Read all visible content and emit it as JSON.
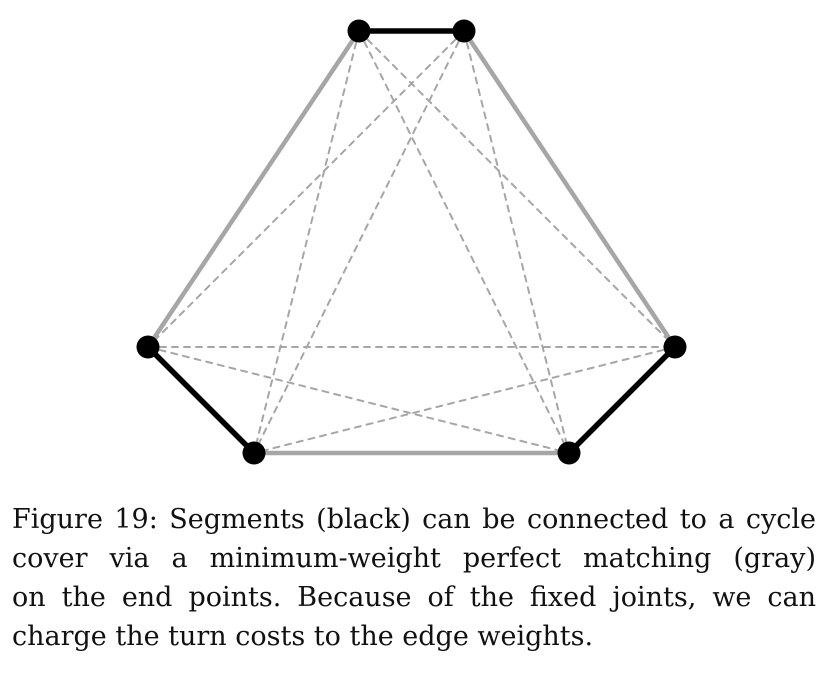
{
  "diagram": {
    "nodes": [
      {
        "id": "top-left"
      },
      {
        "id": "top-right"
      },
      {
        "id": "mid-left"
      },
      {
        "id": "mid-right"
      },
      {
        "id": "bottom-left"
      },
      {
        "id": "bottom-right"
      }
    ],
    "segments": [
      {
        "from": "top-left",
        "to": "top-right"
      },
      {
        "from": "mid-left",
        "to": "bottom-left"
      },
      {
        "from": "mid-right",
        "to": "bottom-right"
      }
    ],
    "matching_edges": [
      {
        "from": "top-left",
        "to": "mid-left"
      },
      {
        "from": "top-right",
        "to": "mid-right"
      },
      {
        "from": "bottom-left",
        "to": "bottom-right"
      }
    ],
    "candidate_edges": [
      {
        "from": "top-left",
        "to": "mid-right"
      },
      {
        "from": "top-left",
        "to": "bottom-left"
      },
      {
        "from": "top-left",
        "to": "bottom-right"
      },
      {
        "from": "top-right",
        "to": "mid-left"
      },
      {
        "from": "top-right",
        "to": "bottom-left"
      },
      {
        "from": "top-right",
        "to": "bottom-right"
      },
      {
        "from": "mid-left",
        "to": "mid-right"
      },
      {
        "from": "mid-left",
        "to": "bottom-right"
      },
      {
        "from": "mid-right",
        "to": "bottom-left"
      }
    ],
    "colors": {
      "segment": "#000000",
      "matching": "#a6a6a6",
      "candidate": "#a6a6a6",
      "node": "#000000"
    }
  },
  "caption": {
    "lines": [
      "Figure 19: Segments (black) can be connected to a cycle",
      "cover via a minimum-weight perfect matching (gray)",
      "on the end points. Because of the fixed joints, we can",
      "charge the turn costs to the edge weights."
    ]
  }
}
